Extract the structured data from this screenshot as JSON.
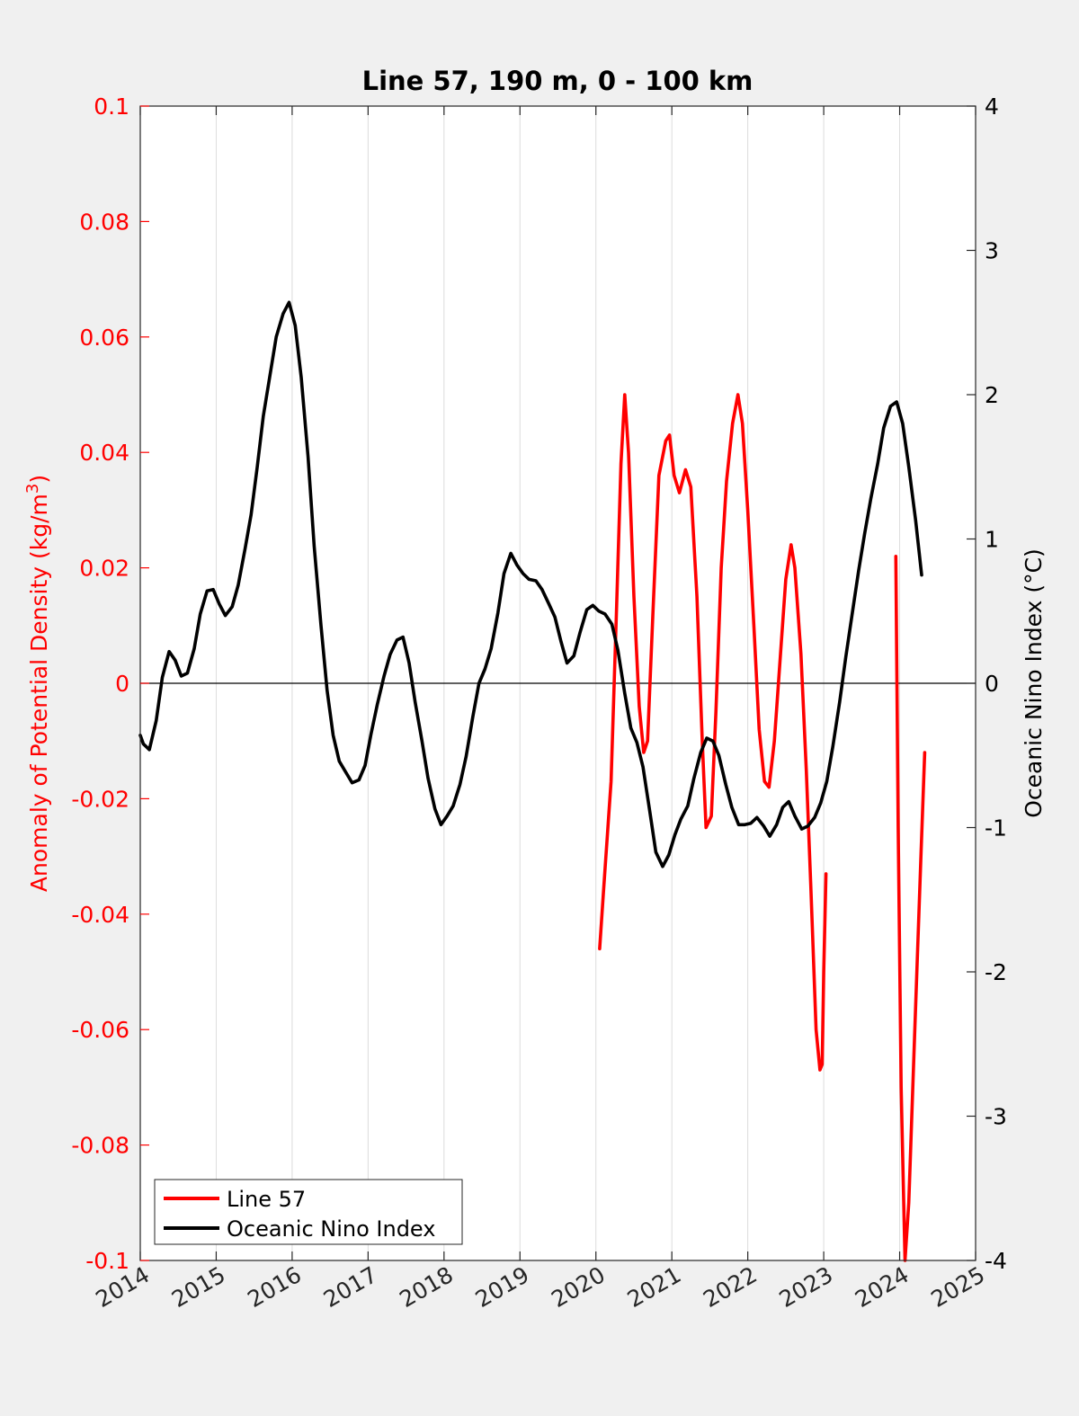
{
  "chart_data": {
    "type": "line",
    "title": "Line 57, 190 m, 0 - 100 km",
    "ylabel_left": "Anomaly of Potential Density (kg/m",
    "ylabel_left_sup": "3",
    "ylabel_left_close": ")",
    "ylabel_right": "Oceanic Nino Index (°C)",
    "xlim": [
      2014,
      2025
    ],
    "ylim_left": [
      -0.1,
      0.1
    ],
    "ylim_right": [
      -4,
      4
    ],
    "x_ticks": [
      "2014",
      "2015",
      "2016",
      "2017",
      "2018",
      "2019",
      "2020",
      "2021",
      "2022",
      "2023",
      "2024",
      "2025"
    ],
    "y_left_ticks": [
      "0.1",
      "0.08",
      "0.06",
      "0.04",
      "0.02",
      "0",
      "-0.02",
      "-0.04",
      "-0.06",
      "-0.08",
      "-0.1"
    ],
    "y_right_ticks": [
      "4",
      "3",
      "2",
      "1",
      "0",
      "-1",
      "-2",
      "-3",
      "-4"
    ],
    "grid_x": true,
    "zero_line": true,
    "legend_position": "bottom-left",
    "colors": {
      "line57": "#ff0000",
      "oni": "#000000",
      "left_axis": "#ff0000",
      "right_axis": "#000000"
    },
    "series": [
      {
        "name": "Line 57",
        "axis": "left",
        "segments": [
          [
            [
              2020.05,
              -0.046
            ],
            [
              2020.1,
              -0.036
            ],
            [
              2020.2,
              -0.017
            ],
            [
              2020.27,
              0.012
            ],
            [
              2020.33,
              0.038
            ],
            [
              2020.38,
              0.05
            ],
            [
              2020.43,
              0.04
            ],
            [
              2020.5,
              0.015
            ],
            [
              2020.57,
              -0.004
            ],
            [
              2020.63,
              -0.012
            ],
            [
              2020.68,
              -0.01
            ],
            [
              2020.75,
              0.012
            ],
            [
              2020.83,
              0.036
            ],
            [
              2020.92,
              0.042
            ],
            [
              2020.97,
              0.043
            ],
            [
              2021.03,
              0.036
            ],
            [
              2021.1,
              0.033
            ],
            [
              2021.18,
              0.037
            ],
            [
              2021.25,
              0.034
            ],
            [
              2021.33,
              0.015
            ],
            [
              2021.4,
              -0.01
            ],
            [
              2021.45,
              -0.025
            ],
            [
              2021.52,
              -0.023
            ],
            [
              2021.58,
              -0.005
            ],
            [
              2021.65,
              0.02
            ],
            [
              2021.72,
              0.035
            ],
            [
              2021.8,
              0.045
            ],
            [
              2021.87,
              0.05
            ],
            [
              2021.93,
              0.045
            ],
            [
              2022.0,
              0.03
            ],
            [
              2022.08,
              0.01
            ],
            [
              2022.15,
              -0.008
            ],
            [
              2022.22,
              -0.017
            ],
            [
              2022.28,
              -0.018
            ],
            [
              2022.35,
              -0.01
            ],
            [
              2022.43,
              0.005
            ],
            [
              2022.5,
              0.018
            ],
            [
              2022.57,
              0.024
            ],
            [
              2022.62,
              0.02
            ],
            [
              2022.7,
              0.005
            ],
            [
              2022.77,
              -0.015
            ],
            [
              2022.83,
              -0.035
            ],
            [
              2022.9,
              -0.06
            ],
            [
              2022.95,
              -0.067
            ],
            [
              2022.98,
              -0.066
            ],
            [
              2023.0,
              -0.05
            ],
            [
              2023.03,
              -0.033
            ]
          ],
          [
            [
              2023.95,
              0.022
            ],
            [
              2023.98,
              -0.025
            ],
            [
              2024.02,
              -0.07
            ],
            [
              2024.07,
              -0.1
            ],
            [
              2024.12,
              -0.09
            ],
            [
              2024.2,
              -0.06
            ],
            [
              2024.28,
              -0.03
            ],
            [
              2024.33,
              -0.012
            ]
          ]
        ]
      },
      {
        "name": "Oceanic Nino Index",
        "axis": "right",
        "segments": [
          [
            [
              2014.0,
              -0.36
            ],
            [
              2014.04,
              -0.42
            ],
            [
              2014.12,
              -0.46
            ],
            [
              2014.21,
              -0.26
            ],
            [
              2014.29,
              0.04
            ],
            [
              2014.38,
              0.22
            ],
            [
              2014.46,
              0.16
            ],
            [
              2014.54,
              0.05
            ],
            [
              2014.62,
              0.07
            ],
            [
              2014.71,
              0.24
            ],
            [
              2014.79,
              0.48
            ],
            [
              2014.88,
              0.64
            ],
            [
              2014.96,
              0.65
            ],
            [
              2015.04,
              0.55
            ],
            [
              2015.12,
              0.47
            ],
            [
              2015.21,
              0.53
            ],
            [
              2015.29,
              0.68
            ],
            [
              2015.38,
              0.93
            ],
            [
              2015.46,
              1.17
            ],
            [
              2015.54,
              1.5
            ],
            [
              2015.62,
              1.85
            ],
            [
              2015.71,
              2.14
            ],
            [
              2015.79,
              2.4
            ],
            [
              2015.88,
              2.56
            ],
            [
              2015.96,
              2.64
            ],
            [
              2016.04,
              2.48
            ],
            [
              2016.12,
              2.12
            ],
            [
              2016.21,
              1.57
            ],
            [
              2016.29,
              0.95
            ],
            [
              2016.38,
              0.4
            ],
            [
              2016.46,
              -0.05
            ],
            [
              2016.54,
              -0.36
            ],
            [
              2016.62,
              -0.54
            ],
            [
              2016.71,
              -0.62
            ],
            [
              2016.79,
              -0.69
            ],
            [
              2016.88,
              -0.67
            ],
            [
              2016.96,
              -0.57
            ],
            [
              2017.04,
              -0.35
            ],
            [
              2017.12,
              -0.15
            ],
            [
              2017.21,
              0.05
            ],
            [
              2017.29,
              0.2
            ],
            [
              2017.38,
              0.3
            ],
            [
              2017.46,
              0.32
            ],
            [
              2017.54,
              0.14
            ],
            [
              2017.62,
              -0.13
            ],
            [
              2017.71,
              -0.4
            ],
            [
              2017.79,
              -0.66
            ],
            [
              2017.88,
              -0.87
            ],
            [
              2017.96,
              -0.98
            ],
            [
              2018.04,
              -0.92
            ],
            [
              2018.12,
              -0.85
            ],
            [
              2018.21,
              -0.7
            ],
            [
              2018.29,
              -0.51
            ],
            [
              2018.38,
              -0.23
            ],
            [
              2018.46,
              0.0
            ],
            [
              2018.54,
              0.1
            ],
            [
              2018.62,
              0.24
            ],
            [
              2018.71,
              0.49
            ],
            [
              2018.79,
              0.76
            ],
            [
              2018.88,
              0.9
            ],
            [
              2018.96,
              0.82
            ],
            [
              2019.04,
              0.76
            ],
            [
              2019.12,
              0.72
            ],
            [
              2019.21,
              0.71
            ],
            [
              2019.29,
              0.65
            ],
            [
              2019.38,
              0.55
            ],
            [
              2019.46,
              0.46
            ],
            [
              2019.54,
              0.29
            ],
            [
              2019.62,
              0.14
            ],
            [
              2019.71,
              0.19
            ],
            [
              2019.79,
              0.35
            ],
            [
              2019.88,
              0.51
            ],
            [
              2019.96,
              0.54
            ],
            [
              2020.04,
              0.5
            ],
            [
              2020.12,
              0.48
            ],
            [
              2020.21,
              0.41
            ],
            [
              2020.29,
              0.23
            ],
            [
              2020.38,
              -0.07
            ],
            [
              2020.46,
              -0.31
            ],
            [
              2020.54,
              -0.41
            ],
            [
              2020.62,
              -0.58
            ],
            [
              2020.71,
              -0.89
            ],
            [
              2020.79,
              -1.17
            ],
            [
              2020.88,
              -1.27
            ],
            [
              2020.96,
              -1.19
            ],
            [
              2021.04,
              -1.05
            ],
            [
              2021.12,
              -0.94
            ],
            [
              2021.21,
              -0.85
            ],
            [
              2021.29,
              -0.66
            ],
            [
              2021.38,
              -0.48
            ],
            [
              2021.46,
              -0.38
            ],
            [
              2021.54,
              -0.4
            ],
            [
              2021.62,
              -0.5
            ],
            [
              2021.71,
              -0.7
            ],
            [
              2021.79,
              -0.86
            ],
            [
              2021.88,
              -0.98
            ],
            [
              2021.96,
              -0.98
            ],
            [
              2022.04,
              -0.97
            ],
            [
              2022.12,
              -0.93
            ],
            [
              2022.21,
              -0.99
            ],
            [
              2022.29,
              -1.06
            ],
            [
              2022.38,
              -0.98
            ],
            [
              2022.46,
              -0.86
            ],
            [
              2022.54,
              -0.82
            ],
            [
              2022.62,
              -0.92
            ],
            [
              2022.71,
              -1.01
            ],
            [
              2022.79,
              -0.99
            ],
            [
              2022.88,
              -0.93
            ],
            [
              2022.96,
              -0.83
            ],
            [
              2023.04,
              -0.68
            ],
            [
              2023.12,
              -0.44
            ],
            [
              2023.21,
              -0.13
            ],
            [
              2023.29,
              0.18
            ],
            [
              2023.38,
              0.5
            ],
            [
              2023.46,
              0.78
            ],
            [
              2023.54,
              1.04
            ],
            [
              2023.62,
              1.28
            ],
            [
              2023.71,
              1.52
            ],
            [
              2023.79,
              1.77
            ],
            [
              2023.88,
              1.92
            ],
            [
              2023.96,
              1.95
            ],
            [
              2024.04,
              1.8
            ],
            [
              2024.12,
              1.5
            ],
            [
              2024.21,
              1.13
            ],
            [
              2024.29,
              0.75
            ]
          ]
        ]
      }
    ]
  },
  "legend": {
    "items": [
      {
        "label": "Line 57",
        "color": "#ff0000"
      },
      {
        "label": "Oceanic Nino Index",
        "color": "#000000"
      }
    ]
  }
}
